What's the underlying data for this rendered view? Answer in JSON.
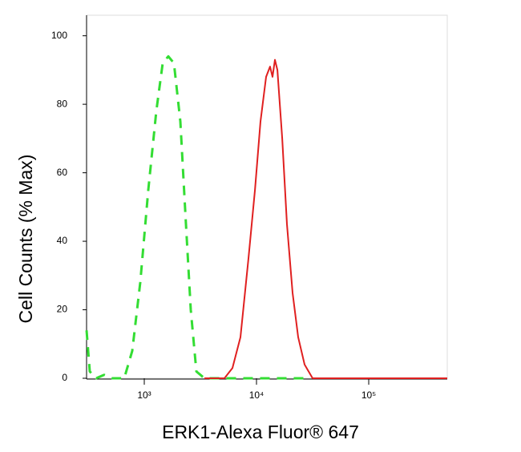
{
  "chart_data": {
    "type": "line",
    "xlabel": "ERK1-Alexa Fluor® 647",
    "ylabel": "Cell Counts (% Max)",
    "xscale": "log",
    "xlim": [
      306,
      501000
    ],
    "ylim": [
      0,
      106
    ],
    "xticks": [
      {
        "value": 1000,
        "label": "10³"
      },
      {
        "value": 10000,
        "label": "10⁴"
      },
      {
        "value": 100000,
        "label": "10⁵"
      }
    ],
    "yticks": [
      0,
      20,
      40,
      60,
      80,
      100
    ],
    "grid": false,
    "series": [
      {
        "color": "#33dd33",
        "dashed": true,
        "x": [
          306,
          327,
          373,
          439,
          518,
          663,
          781,
          921,
          1086,
          1280,
          1460,
          1637,
          1838,
          2096,
          2352,
          2596,
          2914,
          3436,
          27000
        ],
        "values": [
          14,
          2,
          0,
          1,
          0,
          0,
          8,
          28,
          55,
          78,
          92,
          94,
          92,
          75,
          45,
          20,
          2,
          0,
          0
        ]
      },
      {
        "color": "#e02020",
        "dashed": false,
        "x": [
          3436,
          5180,
          6105,
          7197,
          8483,
          9683,
          10860,
          12180,
          13210,
          13900,
          14590,
          15350,
          16940,
          18680,
          20950,
          23500,
          26830,
          31620,
          501000
        ],
        "values": [
          0,
          0,
          3,
          12,
          35,
          55,
          75,
          88,
          91,
          88,
          93,
          90,
          70,
          45,
          25,
          12,
          4,
          0,
          0
        ]
      }
    ]
  }
}
